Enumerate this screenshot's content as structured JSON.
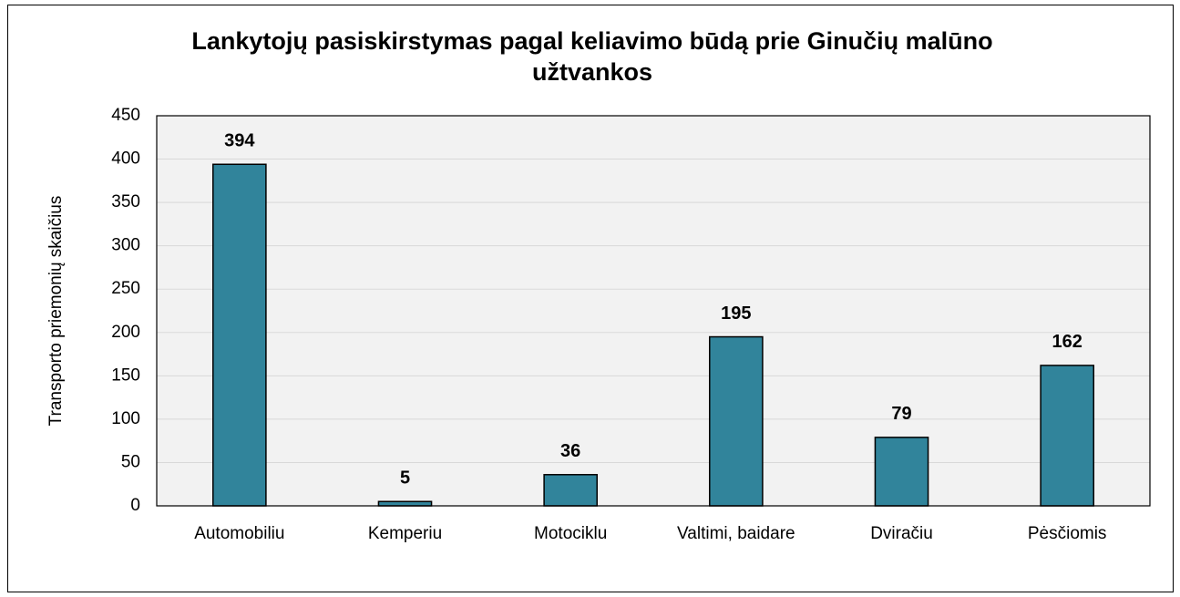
{
  "chart_data": {
    "type": "bar",
    "title": "Lankytojų pasiskirstymas pagal keliavimo būdą prie Ginučių malūno užtvankos",
    "y_label": "Transporto priemonių skaičius",
    "categories": [
      "Automobiliu",
      "Kemperiu",
      "Motociklu",
      "Valtimi, baidare",
      "Dviračiu",
      "Pėsčiomis"
    ],
    "values": [
      394,
      5,
      36,
      195,
      79,
      162
    ],
    "color": "#31849b",
    "ylim": [
      0,
      450
    ],
    "yticks": [
      0,
      50,
      100,
      150,
      200,
      250,
      300,
      350,
      400,
      450
    ],
    "grid": true
  }
}
